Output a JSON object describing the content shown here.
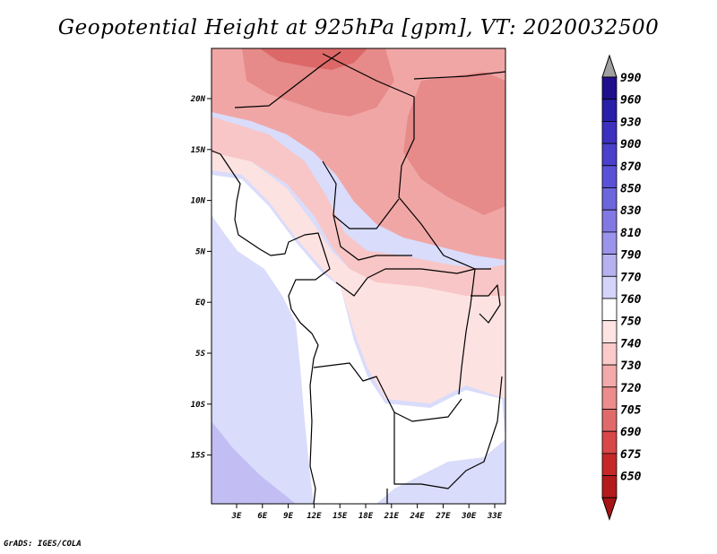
{
  "title": "Geopotential Height at 925hPa [gpm], VT: 2020032500",
  "credit": "GrADS: IGES/COLA",
  "map": {
    "variable": "Geopotential Height",
    "level": "925hPa",
    "units": "gpm",
    "valid_time": "2020032500",
    "x_ticks": [
      "3E",
      "6E",
      "9E",
      "12E",
      "15E",
      "18E",
      "21E",
      "24E",
      "27E",
      "30E",
      "33E"
    ],
    "y_ticks": [
      "20N",
      "15N",
      "10N",
      "5N",
      "EQ",
      "5S",
      "10S",
      "15S"
    ]
  },
  "colorbar": {
    "levels": [
      "990",
      "960",
      "930",
      "900",
      "870",
      "850",
      "830",
      "810",
      "790",
      "770",
      "760",
      "750",
      "740",
      "730",
      "720",
      "705",
      "690",
      "675",
      "650"
    ],
    "colors": [
      "#1f0f8c",
      "#2a1fa8",
      "#3c30c0",
      "#4a40cc",
      "#5a52d6",
      "#6c66dd",
      "#8278e4",
      "#9a94ea",
      "#b6b2f0",
      "#d4d4fa",
      "#ffffff",
      "#ffe4e4",
      "#fbcaca",
      "#f4aaaa",
      "#ec8c8c",
      "#e06a6a",
      "#d84848",
      "#c62828",
      "#b41a1a"
    ],
    "top_arrow_color": "#a0a0a0",
    "bottom_arrow_color": "#a81414"
  },
  "palette": {
    "ocean": "#d9dcfa",
    "ocean_deep": "#c2bef4",
    "land_white": "#ffffff",
    "land_pale": "#fde2e2",
    "land_light": "#f8c6c6",
    "land_mid": "#f1a6a6",
    "land_dark": "#e68a8a",
    "land_red": "#dc6868"
  }
}
